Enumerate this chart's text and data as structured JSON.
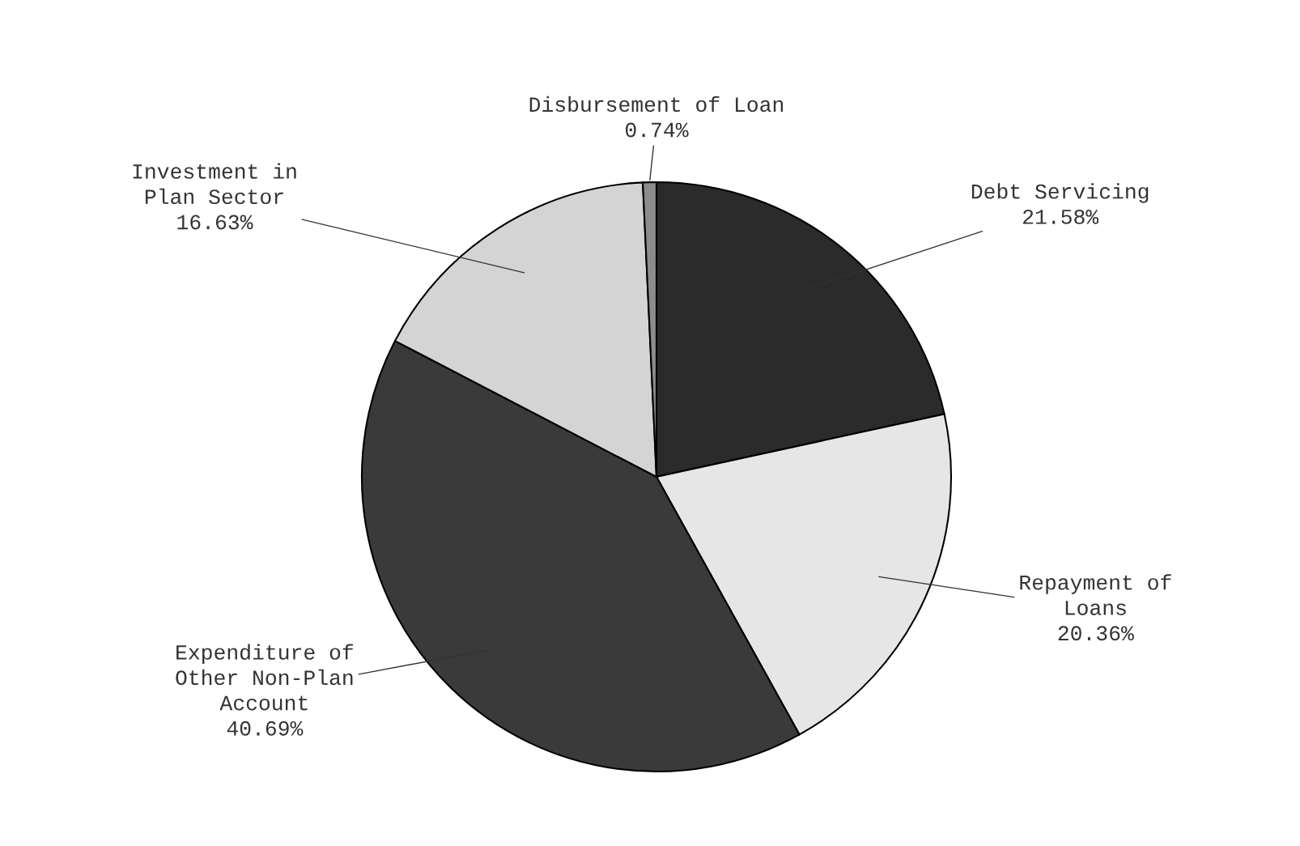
{
  "chart_data": {
    "type": "pie",
    "categories": [
      "Debt Servicing",
      "Repayment of\nLoans",
      "Expenditure of\nOther Non-Plan\nAccount",
      "Investment in\nPlan Sector",
      "Disbursement of Loan"
    ],
    "values": [
      21.58,
      20.36,
      40.69,
      16.63,
      0.74
    ],
    "value_labels": [
      "21.58%",
      "20.36%",
      "40.69%",
      "16.63%",
      "0.74%"
    ],
    "colors": [
      "#2b2b2b",
      "#e6e6e6",
      "#3a3a3a",
      "#d4d4d4",
      "#8c8c8c"
    ],
    "legend": false
  }
}
